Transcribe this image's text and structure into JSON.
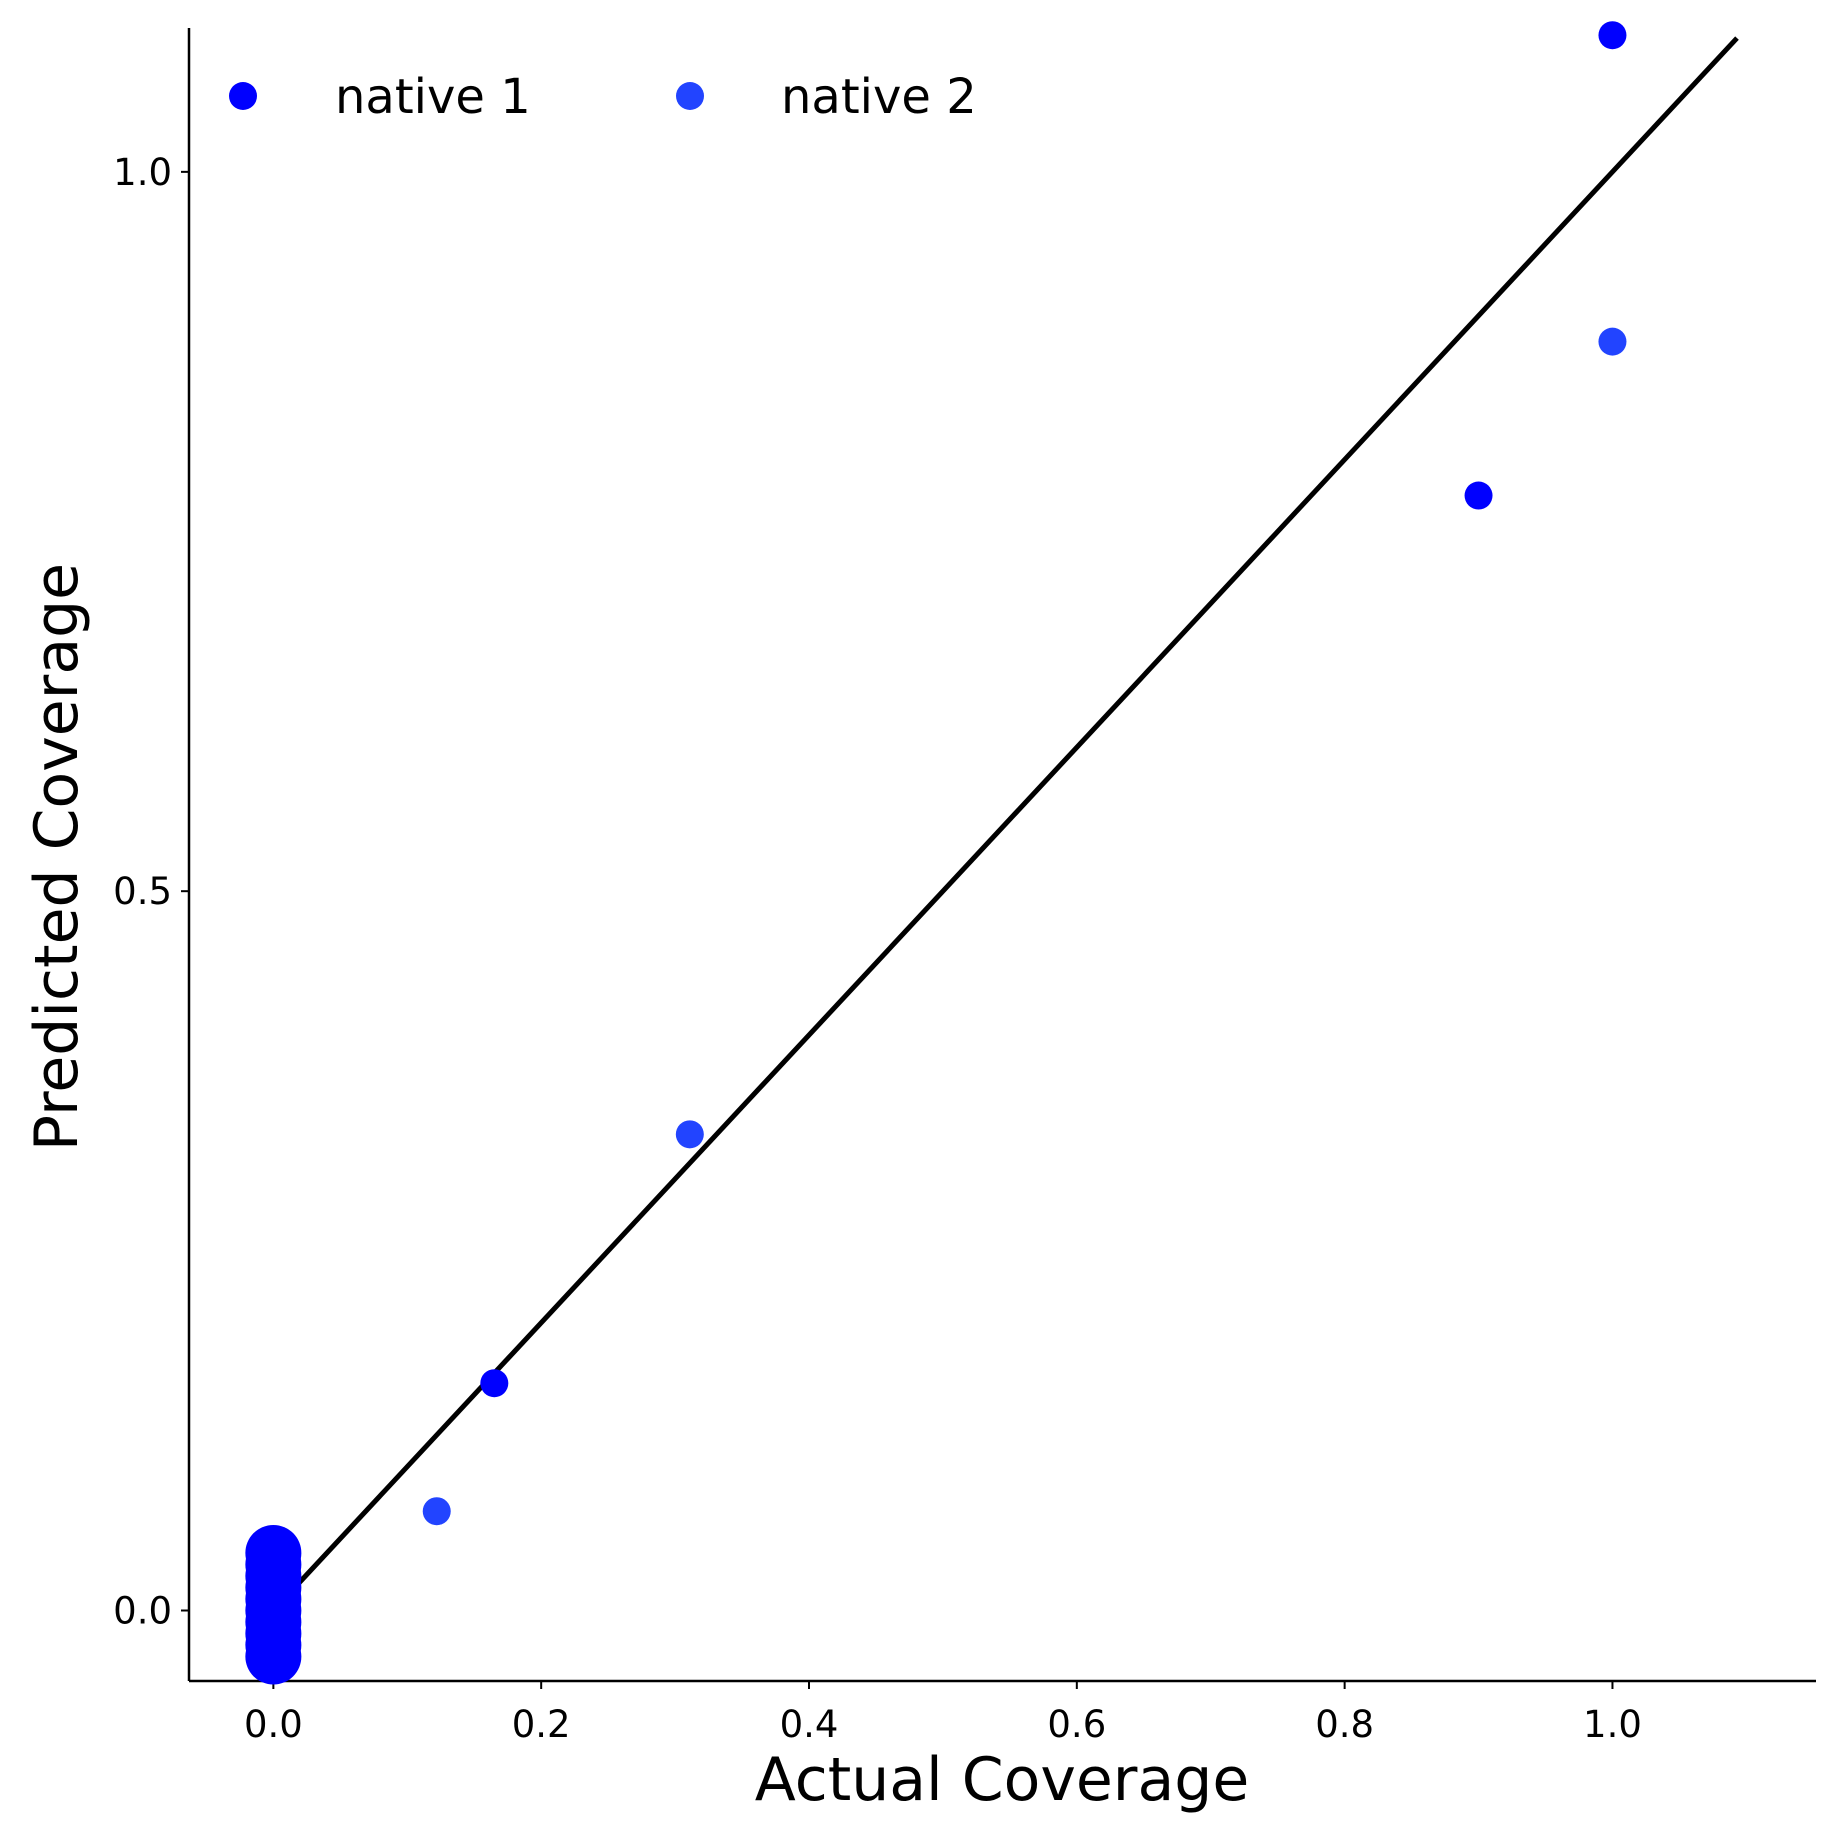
{
  "chart_data": {
    "type": "scatter",
    "xlabel": "Actual Coverage",
    "ylabel": "Predicted Coverage",
    "xlim": [
      -0.063,
      1.152
    ],
    "ylim": [
      -0.049,
      1.1
    ],
    "x_ticks": [
      0.0,
      0.2,
      0.4,
      0.6,
      0.8,
      1.0
    ],
    "x_tick_labels": [
      "0.0",
      "0.2",
      "0.4",
      "0.6",
      "0.8",
      "1.0"
    ],
    "y_ticks": [
      0.0,
      0.5,
      1.0
    ],
    "y_tick_labels": [
      "0.0",
      "0.5",
      "1.0"
    ],
    "grid": false,
    "legend": {
      "placement": "top-left",
      "columns": 2
    },
    "reference_line": {
      "x": [
        0.0,
        1.093
      ],
      "y": [
        0.0,
        1.093
      ],
      "color": "#000000"
    },
    "series": [
      {
        "name": "native 1",
        "color": "#0000ff",
        "x": [
          0.0,
          0.0,
          0.0,
          0.0,
          0.0,
          0.0,
          0.0,
          0.0,
          0.0,
          0.0,
          0.165,
          0.9,
          1.0
        ],
        "y": [
          0.04,
          0.032,
          0.024,
          0.016,
          0.008,
          0.0,
          -0.008,
          -0.016,
          -0.024,
          -0.032,
          0.158,
          0.775,
          1.095
        ]
      },
      {
        "name": "native 2",
        "color": "#2244ff",
        "x": [
          0.122,
          0.311,
          1.0
        ],
        "y": [
          0.069,
          0.331,
          0.882
        ]
      }
    ]
  }
}
